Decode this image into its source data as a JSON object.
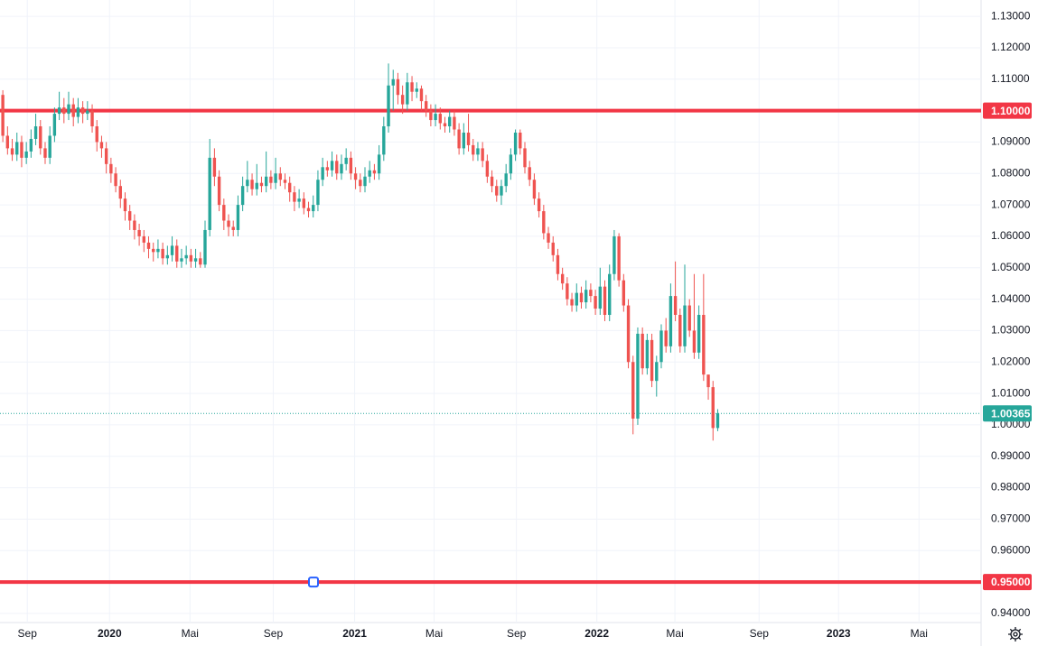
{
  "chart_data": {
    "type": "candlestick",
    "up_color": "#26a69a",
    "down_color": "#ef5350",
    "level_color": "#f23645",
    "grid": true,
    "xlim": [
      -0.6,
      208
    ],
    "xticks": [
      {
        "value": 5.2,
        "label": "Sep"
      },
      {
        "value": 22.7,
        "label": "2020"
      },
      {
        "value": 39.8,
        "label": "Mai"
      },
      {
        "value": 57.5,
        "label": "Sep"
      },
      {
        "value": 74.8,
        "label": "2021"
      },
      {
        "value": 91.7,
        "label": "Mai"
      },
      {
        "value": 109.2,
        "label": "Sep"
      },
      {
        "value": 126.3,
        "label": "2022"
      },
      {
        "value": 142.9,
        "label": "Mai"
      },
      {
        "value": 160.8,
        "label": "Sep"
      },
      {
        "value": 177.7,
        "label": "2023"
      },
      {
        "value": 194.8,
        "label": "Mai"
      }
    ],
    "ylim": [
      0.9371,
      1.1352
    ],
    "yticks": [
      {
        "value": 0.94,
        "label": "0.94000"
      },
      {
        "value": 0.95,
        "label": "0.95000"
      },
      {
        "value": 0.96,
        "label": "0.96000"
      },
      {
        "value": 0.97,
        "label": "0.97000"
      },
      {
        "value": 0.98,
        "label": "0.98000"
      },
      {
        "value": 0.99,
        "label": "0.99000"
      },
      {
        "value": 1.0,
        "label": "1.00000"
      },
      {
        "value": 1.01,
        "label": "1.01000"
      },
      {
        "value": 1.02,
        "label": "1.02000"
      },
      {
        "value": 1.03,
        "label": "1.03000"
      },
      {
        "value": 1.04,
        "label": "1.04000"
      },
      {
        "value": 1.05,
        "label": "1.05000"
      },
      {
        "value": 1.06,
        "label": "1.06000"
      },
      {
        "value": 1.07,
        "label": "1.07000"
      },
      {
        "value": 1.08,
        "label": "1.08000"
      },
      {
        "value": 1.09,
        "label": "1.09000"
      },
      {
        "value": 1.1,
        "label": "1.10000"
      },
      {
        "value": 1.11,
        "label": "1.11000"
      },
      {
        "value": 1.12,
        "label": "1.12000"
      },
      {
        "value": 1.13,
        "label": "1.13000"
      }
    ],
    "levels": [
      {
        "value": 1.1,
        "label": "1.10000"
      },
      {
        "value": 0.95,
        "label": "0.95000"
      }
    ],
    "last_price": {
      "value": 1.00365,
      "label": "1.00365"
    },
    "ohlc": [
      [
        1.105,
        1.1065,
        1.09,
        1.092
      ],
      [
        1.092,
        1.095,
        1.086,
        1.088
      ],
      [
        1.088,
        1.091,
        1.084,
        1.086
      ],
      [
        1.086,
        1.093,
        1.084,
        1.09
      ],
      [
        1.09,
        1.092,
        1.082,
        1.085
      ],
      [
        1.085,
        1.09,
        1.083,
        1.087
      ],
      [
        1.087,
        1.094,
        1.085,
        1.091
      ],
      [
        1.091,
        1.099,
        1.089,
        1.095
      ],
      [
        1.095,
        1.097,
        1.086,
        1.088
      ],
      [
        1.088,
        1.09,
        1.083,
        1.085
      ],
      [
        1.085,
        1.095,
        1.083,
        1.092
      ],
      [
        1.092,
        1.101,
        1.09,
        1.099
      ],
      [
        1.099,
        1.106,
        1.097,
        1.101
      ],
      [
        1.101,
        1.104,
        1.096,
        1.099
      ],
      [
        1.099,
        1.106,
        1.097,
        1.102
      ],
      [
        1.102,
        1.104,
        1.095,
        1.098
      ],
      [
        1.098,
        1.104,
        1.096,
        1.101
      ],
      [
        1.101,
        1.103,
        1.096,
        1.099
      ],
      [
        1.099,
        1.103,
        1.097,
        1.1
      ],
      [
        1.1,
        1.102,
        1.093,
        1.095
      ],
      [
        1.095,
        1.097,
        1.087,
        1.09
      ],
      [
        1.09,
        1.092,
        1.085,
        1.088
      ],
      [
        1.088,
        1.09,
        1.08,
        1.083
      ],
      [
        1.083,
        1.085,
        1.077,
        1.08
      ],
      [
        1.08,
        1.082,
        1.074,
        1.076
      ],
      [
        1.076,
        1.078,
        1.069,
        1.072
      ],
      [
        1.072,
        1.074,
        1.065,
        1.068
      ],
      [
        1.068,
        1.07,
        1.062,
        1.065
      ],
      [
        1.065,
        1.067,
        1.059,
        1.062
      ],
      [
        1.062,
        1.064,
        1.057,
        1.06
      ],
      [
        1.06,
        1.062,
        1.055,
        1.058
      ],
      [
        1.058,
        1.06,
        1.053,
        1.056
      ],
      [
        1.056,
        1.058,
        1.052,
        1.055
      ],
      [
        1.055,
        1.059,
        1.053,
        1.056
      ],
      [
        1.056,
        1.058,
        1.051,
        1.053
      ],
      [
        1.053,
        1.057,
        1.051,
        1.054
      ],
      [
        1.054,
        1.06,
        1.052,
        1.057
      ],
      [
        1.057,
        1.059,
        1.05,
        1.052
      ],
      [
        1.052,
        1.056,
        1.05,
        1.053
      ],
      [
        1.053,
        1.057,
        1.051,
        1.054
      ],
      [
        1.054,
        1.056,
        1.05,
        1.052
      ],
      [
        1.052,
        1.056,
        1.05,
        1.053
      ],
      [
        1.053,
        1.055,
        1.05,
        1.051
      ],
      [
        1.051,
        1.065,
        1.05,
        1.062
      ],
      [
        1.062,
        1.091,
        1.06,
        1.085
      ],
      [
        1.085,
        1.088,
        1.076,
        1.079
      ],
      [
        1.079,
        1.081,
        1.068,
        1.07
      ],
      [
        1.07,
        1.072,
        1.062,
        1.065
      ],
      [
        1.065,
        1.067,
        1.06,
        1.063
      ],
      [
        1.063,
        1.065,
        1.06,
        1.062
      ],
      [
        1.062,
        1.073,
        1.06,
        1.07
      ],
      [
        1.07,
        1.079,
        1.068,
        1.076
      ],
      [
        1.076,
        1.084,
        1.074,
        1.078
      ],
      [
        1.078,
        1.08,
        1.073,
        1.075
      ],
      [
        1.075,
        1.083,
        1.073,
        1.077
      ],
      [
        1.077,
        1.079,
        1.074,
        1.076
      ],
      [
        1.076,
        1.087,
        1.074,
        1.079
      ],
      [
        1.079,
        1.081,
        1.075,
        1.077
      ],
      [
        1.077,
        1.085,
        1.075,
        1.08
      ],
      [
        1.08,
        1.082,
        1.076,
        1.078
      ],
      [
        1.078,
        1.08,
        1.075,
        1.077
      ],
      [
        1.077,
        1.079,
        1.071,
        1.074
      ],
      [
        1.074,
        1.076,
        1.068,
        1.071
      ],
      [
        1.071,
        1.075,
        1.069,
        1.072
      ],
      [
        1.072,
        1.074,
        1.067,
        1.069
      ],
      [
        1.069,
        1.071,
        1.066,
        1.068
      ],
      [
        1.068,
        1.073,
        1.066,
        1.07
      ],
      [
        1.07,
        1.081,
        1.068,
        1.078
      ],
      [
        1.078,
        1.085,
        1.076,
        1.082
      ],
      [
        1.082,
        1.084,
        1.079,
        1.081
      ],
      [
        1.081,
        1.087,
        1.079,
        1.084
      ],
      [
        1.084,
        1.086,
        1.078,
        1.08
      ],
      [
        1.08,
        1.086,
        1.078,
        1.083
      ],
      [
        1.083,
        1.088,
        1.081,
        1.085
      ],
      [
        1.085,
        1.087,
        1.078,
        1.08
      ],
      [
        1.08,
        1.082,
        1.075,
        1.078
      ],
      [
        1.078,
        1.08,
        1.074,
        1.076
      ],
      [
        1.076,
        1.082,
        1.074,
        1.079
      ],
      [
        1.079,
        1.084,
        1.077,
        1.081
      ],
      [
        1.081,
        1.083,
        1.078,
        1.08
      ],
      [
        1.08,
        1.089,
        1.078,
        1.086
      ],
      [
        1.086,
        1.098,
        1.084,
        1.095
      ],
      [
        1.095,
        1.115,
        1.093,
        1.108
      ],
      [
        1.108,
        1.113,
        1.1,
        1.11
      ],
      [
        1.11,
        1.112,
        1.102,
        1.105
      ],
      [
        1.105,
        1.108,
        1.099,
        1.102
      ],
      [
        1.102,
        1.112,
        1.1,
        1.109
      ],
      [
        1.109,
        1.111,
        1.103,
        1.106
      ],
      [
        1.106,
        1.109,
        1.104,
        1.107
      ],
      [
        1.107,
        1.108,
        1.1,
        1.103
      ],
      [
        1.103,
        1.105,
        1.098,
        1.1
      ],
      [
        1.1,
        1.102,
        1.095,
        1.097
      ],
      [
        1.097,
        1.102,
        1.095,
        1.099
      ],
      [
        1.099,
        1.101,
        1.094,
        1.096
      ],
      [
        1.096,
        1.098,
        1.093,
        1.095
      ],
      [
        1.095,
        1.1,
        1.093,
        1.098
      ],
      [
        1.098,
        1.1,
        1.092,
        1.094
      ],
      [
        1.094,
        1.096,
        1.086,
        1.088
      ],
      [
        1.088,
        1.096,
        1.086,
        1.093
      ],
      [
        1.093,
        1.099,
        1.087,
        1.089
      ],
      [
        1.089,
        1.091,
        1.084,
        1.086
      ],
      [
        1.086,
        1.09,
        1.084,
        1.088
      ],
      [
        1.088,
        1.09,
        1.082,
        1.084
      ],
      [
        1.084,
        1.086,
        1.077,
        1.079
      ],
      [
        1.079,
        1.081,
        1.074,
        1.076
      ],
      [
        1.076,
        1.078,
        1.071,
        1.073
      ],
      [
        1.073,
        1.078,
        1.07,
        1.076
      ],
      [
        1.076,
        1.083,
        1.074,
        1.08
      ],
      [
        1.08,
        1.088,
        1.078,
        1.086
      ],
      [
        1.086,
        1.094,
        1.084,
        1.093
      ],
      [
        1.093,
        1.094,
        1.086,
        1.088
      ],
      [
        1.088,
        1.09,
        1.08,
        1.082
      ],
      [
        1.082,
        1.084,
        1.076,
        1.078
      ],
      [
        1.078,
        1.08,
        1.07,
        1.072
      ],
      [
        1.072,
        1.074,
        1.066,
        1.068
      ],
      [
        1.068,
        1.07,
        1.059,
        1.061
      ],
      [
        1.061,
        1.063,
        1.056,
        1.058
      ],
      [
        1.058,
        1.06,
        1.052,
        1.054
      ],
      [
        1.054,
        1.056,
        1.046,
        1.048
      ],
      [
        1.048,
        1.05,
        1.043,
        1.045
      ],
      [
        1.045,
        1.047,
        1.038,
        1.04
      ],
      [
        1.04,
        1.042,
        1.036,
        1.038
      ],
      [
        1.038,
        1.045,
        1.036,
        1.042
      ],
      [
        1.042,
        1.044,
        1.037,
        1.039
      ],
      [
        1.039,
        1.046,
        1.037,
        1.043
      ],
      [
        1.043,
        1.045,
        1.039,
        1.041
      ],
      [
        1.041,
        1.043,
        1.035,
        1.037
      ],
      [
        1.037,
        1.05,
        1.035,
        1.044
      ],
      [
        1.044,
        1.046,
        1.033,
        1.035
      ],
      [
        1.035,
        1.051,
        1.033,
        1.048
      ],
      [
        1.048,
        1.062,
        1.046,
        1.06
      ],
      [
        1.06,
        1.061,
        1.044,
        1.046
      ],
      [
        1.046,
        1.048,
        1.036,
        1.038
      ],
      [
        1.038,
        1.04,
        1.018,
        1.02
      ],
      [
        1.02,
        1.022,
        0.997,
        1.002
      ],
      [
        1.002,
        1.031,
        1.0,
        1.029
      ],
      [
        1.029,
        1.031,
        1.016,
        1.018
      ],
      [
        1.018,
        1.029,
        1.016,
        1.027
      ],
      [
        1.027,
        1.029,
        1.012,
        1.014
      ],
      [
        1.014,
        1.022,
        1.009,
        1.02
      ],
      [
        1.02,
        1.032,
        1.018,
        1.03
      ],
      [
        1.03,
        1.034,
        1.023,
        1.025
      ],
      [
        1.025,
        1.045,
        1.023,
        1.041
      ],
      [
        1.041,
        1.052,
        1.033,
        1.035
      ],
      [
        1.035,
        1.037,
        1.023,
        1.025
      ],
      [
        1.025,
        1.051,
        1.023,
        1.038
      ],
      [
        1.038,
        1.04,
        1.028,
        1.03
      ],
      [
        1.03,
        1.048,
        1.021,
        1.023
      ],
      [
        1.023,
        1.038,
        1.021,
        1.035
      ],
      [
        1.035,
        1.048,
        1.014,
        1.016
      ],
      [
        1.016,
        1.016,
        1.008,
        1.012
      ],
      [
        1.012,
        1.014,
        0.995,
        0.999
      ],
      [
        0.999,
        1.005,
        0.998,
        1.00365
      ]
    ]
  }
}
